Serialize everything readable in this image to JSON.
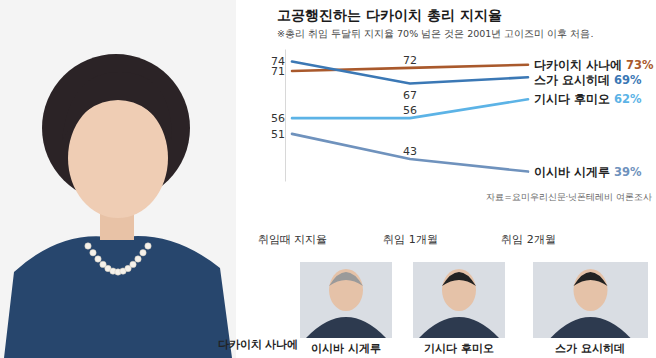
{
  "chart_data": {
    "type": "line",
    "title": "고공행진하는 다카이치 총리 지지율",
    "subtitle": "※총리 취임 두달뒤 지지율 70% 넘은 것은 2001년 고이즈미 이후 처음.",
    "source": "자료=요미우리신문·닛폰테레비 여론조사",
    "categories": [
      "취임때 지지율",
      "취임 1개월",
      "취임 2개월"
    ],
    "series": [
      {
        "name": "다카이치 사나에",
        "color": "#a9592c",
        "values": [
          71,
          72,
          73
        ],
        "value_labels": [
          "71",
          "72",
          "73%"
        ]
      },
      {
        "name": "스가 요시히데",
        "color": "#3b78b5",
        "values": [
          74,
          67,
          69
        ],
        "value_labels": [
          "74",
          "67",
          "69%"
        ]
      },
      {
        "name": "기시다 후미오",
        "color": "#5cb3e6",
        "values": [
          56,
          56,
          62
        ],
        "value_labels": [
          "56",
          "56",
          "62%"
        ]
      },
      {
        "name": "이시바 시게루",
        "color": "#6f92bd",
        "values": [
          51,
          43,
          39
        ],
        "value_labels": [
          "51",
          "43",
          "39%"
        ]
      }
    ],
    "ylim": [
      36,
      78
    ],
    "yticks": [],
    "tick_labels": "x",
    "grid": false,
    "data_labels": true
  },
  "photo_captions": [
    "다카이치 사나에",
    "이시바 시게루",
    "기시다 후미오",
    "스가 요시히데"
  ]
}
